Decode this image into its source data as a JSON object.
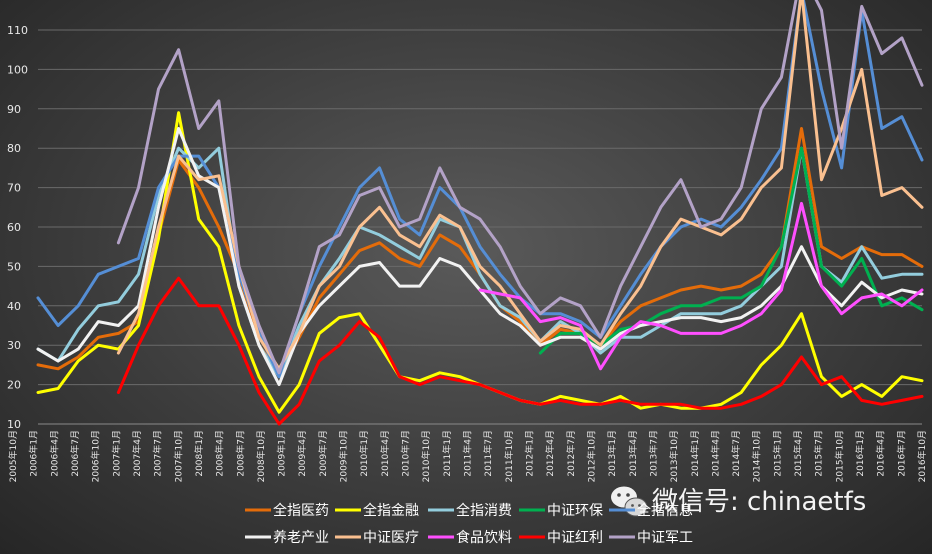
{
  "watermark": {
    "icon": "wechat-icon",
    "text": "微信号: chinaetfs"
  },
  "chart_data": {
    "type": "line",
    "ylim": [
      10,
      110
    ],
    "yticks": [
      10,
      20,
      30,
      40,
      50,
      60,
      70,
      80,
      90,
      100,
      110
    ],
    "grid": true,
    "legend_position": "bottom",
    "x": [
      "2005年10月",
      "2006年1月",
      "2006年4月",
      "2006年7月",
      "2006年10月",
      "2007年1月",
      "2007年4月",
      "2007年7月",
      "2007年10月",
      "2008年1月",
      "2008年4月",
      "2008年7月",
      "2008年10月",
      "2009年1月",
      "2009年4月",
      "2009年7月",
      "2009年10月",
      "2010年1月",
      "2010年4月",
      "2010年7月",
      "2010年10月",
      "2011年1月",
      "2011年4月",
      "2011年7月",
      "2011年10月",
      "2012年1月",
      "2012年4月",
      "2012年7月",
      "2012年10月",
      "2013年1月",
      "2013年4月",
      "2013年7月",
      "2013年10月",
      "2014年1月",
      "2014年4月",
      "2014年7月",
      "2014年10月",
      "2015年1月",
      "2015年4月",
      "2015年7月",
      "2015年10月",
      "2016年1月",
      "2016年4月",
      "2016年7月",
      "2016年10月"
    ],
    "series": [
      {
        "name": "全指医药",
        "color": "#e46c0a",
        "values": [
          25,
          24,
          27,
          32,
          33,
          36,
          58,
          77,
          70,
          60,
          48,
          30,
          23,
          32,
          42,
          48,
          54,
          56,
          52,
          50,
          58,
          55,
          48,
          40,
          36,
          30,
          34,
          33,
          30,
          36,
          40,
          42,
          44,
          45,
          44,
          45,
          48,
          55,
          85,
          55,
          52,
          55,
          53,
          53,
          50
        ]
      },
      {
        "name": "全指金融",
        "color": "#ffff00",
        "values": [
          18,
          19,
          26,
          30,
          29,
          35,
          57,
          89,
          62,
          55,
          35,
          22,
          13,
          20,
          33,
          37,
          38,
          30,
          22,
          21,
          23,
          22,
          20,
          18,
          16,
          15,
          17,
          16,
          15,
          17,
          14,
          15,
          14,
          14,
          15,
          18,
          25,
          30,
          38,
          22,
          17,
          20,
          17,
          22,
          21
        ]
      },
      {
        "name": "全指消费",
        "color": "#93cddd",
        "values": [
          29,
          26,
          34,
          40,
          41,
          48,
          68,
          80,
          75,
          80,
          45,
          30,
          22,
          35,
          45,
          52,
          60,
          58,
          55,
          52,
          62,
          60,
          48,
          40,
          37,
          31,
          36,
          33,
          28,
          32,
          32,
          35,
          38,
          38,
          38,
          40,
          45,
          50,
          80,
          50,
          46,
          55,
          47,
          48,
          48
        ]
      },
      {
        "name": "中证环保",
        "color": "#00b050",
        "values": [
          null,
          null,
          null,
          null,
          null,
          null,
          null,
          null,
          null,
          null,
          null,
          null,
          null,
          null,
          null,
          null,
          null,
          null,
          null,
          null,
          null,
          null,
          null,
          null,
          null,
          28,
          33,
          33,
          30,
          34,
          35,
          38,
          40,
          40,
          42,
          42,
          45,
          55,
          80,
          50,
          45,
          52,
          40,
          42,
          39
        ]
      },
      {
        "name": "全指信息",
        "color": "#558ed5",
        "values": [
          42,
          35,
          40,
          48,
          50,
          52,
          70,
          78,
          78,
          70,
          48,
          33,
          22,
          38,
          50,
          60,
          70,
          75,
          62,
          58,
          70,
          65,
          55,
          48,
          42,
          38,
          38,
          36,
          32,
          40,
          48,
          55,
          60,
          62,
          60,
          65,
          72,
          80,
          120,
          95,
          75,
          115,
          85,
          88,
          77
        ]
      },
      {
        "name": "养老产业",
        "color": "#f2f2f2",
        "values": [
          29,
          26,
          29,
          36,
          35,
          40,
          65,
          85,
          73,
          70,
          45,
          30,
          20,
          33,
          40,
          45,
          50,
          51,
          45,
          45,
          52,
          50,
          44,
          38,
          35,
          30,
          32,
          32,
          29,
          33,
          35,
          36,
          37,
          37,
          36,
          37,
          40,
          45,
          55,
          45,
          40,
          46,
          42,
          44,
          43
        ]
      },
      {
        "name": "中证医疗",
        "color": "#fac090",
        "values": [
          null,
          null,
          null,
          null,
          28,
          38,
          60,
          78,
          72,
          73,
          50,
          32,
          24,
          33,
          45,
          50,
          60,
          65,
          58,
          55,
          63,
          60,
          50,
          45,
          38,
          31,
          35,
          34,
          30,
          38,
          45,
          55,
          62,
          60,
          58,
          62,
          70,
          75,
          120,
          72,
          85,
          100,
          68,
          70,
          65
        ]
      },
      {
        "name": "食品饮料",
        "color": "#ff4fff",
        "values": [
          null,
          null,
          null,
          null,
          null,
          null,
          null,
          null,
          null,
          null,
          null,
          null,
          null,
          null,
          null,
          null,
          null,
          null,
          null,
          null,
          null,
          null,
          44,
          43,
          42,
          36,
          37,
          35,
          24,
          32,
          36,
          35,
          33,
          33,
          33,
          35,
          38,
          44,
          66,
          45,
          38,
          42,
          43,
          40,
          44
        ]
      },
      {
        "name": "中证红利",
        "color": "#ff0000",
        "values": [
          null,
          null,
          null,
          null,
          18,
          30,
          40,
          47,
          40,
          40,
          30,
          18,
          10,
          15,
          26,
          30,
          36,
          32,
          22,
          20,
          22,
          21,
          20,
          18,
          16,
          15,
          16,
          15,
          15,
          16,
          15,
          15,
          15,
          14,
          14,
          15,
          17,
          20,
          27,
          20,
          22,
          16,
          15,
          16,
          17
        ]
      },
      {
        "name": "中证军工",
        "color": "#b3a2c7",
        "values": [
          null,
          null,
          null,
          null,
          56,
          70,
          95,
          105,
          85,
          92,
          50,
          35,
          23,
          38,
          55,
          58,
          68,
          70,
          60,
          62,
          75,
          65,
          62,
          55,
          45,
          38,
          42,
          40,
          32,
          45,
          55,
          65,
          72,
          60,
          62,
          70,
          90,
          98,
          125,
          115,
          80,
          116,
          104,
          108,
          96
        ]
      }
    ]
  }
}
